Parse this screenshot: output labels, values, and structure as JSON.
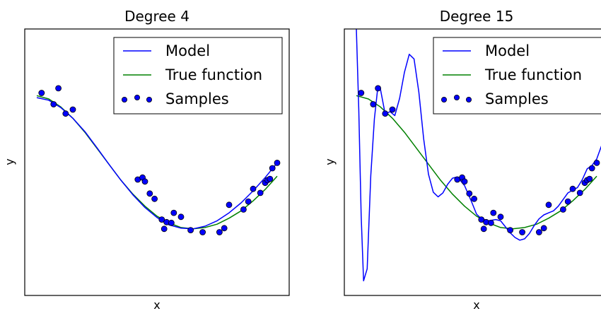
{
  "chart_data": [
    {
      "type": "line",
      "title": "Degree 4",
      "xlabel": "x",
      "ylabel": "y",
      "xlim": [
        -0.05,
        1.05
      ],
      "ylim": [
        -2,
        2
      ],
      "ticks_shown": false,
      "legend": {
        "placement": "top-right",
        "entries": [
          "Model",
          "True function",
          "Samples"
        ]
      },
      "colors": {
        "model": "#0000ff",
        "true_function": "#008000",
        "samples": "#0000ff"
      },
      "series": [
        {
          "name": "Model",
          "kind": "line",
          "x": [
            0.0,
            0.05,
            0.1,
            0.15,
            0.2,
            0.25,
            0.3,
            0.35,
            0.4,
            0.45,
            0.5,
            0.55,
            0.6,
            0.65,
            0.7,
            0.75,
            0.8,
            0.85,
            0.9,
            0.95,
            1.0
          ],
          "y": [
            0.97,
            0.93,
            0.82,
            0.66,
            0.46,
            0.22,
            -0.03,
            -0.27,
            -0.49,
            -0.68,
            -0.83,
            -0.94,
            -0.99,
            -1.0,
            -0.96,
            -0.88,
            -0.76,
            -0.61,
            -0.43,
            -0.23,
            -0.01
          ]
        },
        {
          "name": "True function",
          "kind": "line",
          "x": [
            0.0,
            0.05,
            0.1,
            0.15,
            0.2,
            0.25,
            0.3,
            0.35,
            0.4,
            0.45,
            0.5,
            0.55,
            0.6,
            0.65,
            0.7,
            0.75,
            0.8,
            0.85,
            0.9,
            0.95,
            1.0
          ],
          "y": [
            1.0,
            0.95,
            0.83,
            0.66,
            0.45,
            0.21,
            -0.03,
            -0.27,
            -0.48,
            -0.66,
            -0.81,
            -0.91,
            -0.98,
            -1.0,
            -0.98,
            -0.93,
            -0.84,
            -0.73,
            -0.58,
            -0.41,
            -0.21
          ]
        },
        {
          "name": "Samples",
          "kind": "scatter",
          "x": [
            0.02,
            0.07,
            0.09,
            0.12,
            0.15,
            0.42,
            0.44,
            0.45,
            0.47,
            0.49,
            0.52,
            0.53,
            0.54,
            0.56,
            0.57,
            0.6,
            0.64,
            0.69,
            0.76,
            0.78,
            0.8,
            0.86,
            0.88,
            0.9,
            0.93,
            0.95,
            0.96,
            0.97,
            0.98,
            1.0
          ],
          "y": [
            1.04,
            0.87,
            1.11,
            0.73,
            0.79,
            -0.26,
            -0.23,
            -0.29,
            -0.47,
            -0.55,
            -0.86,
            -1.0,
            -0.9,
            -0.91,
            -0.76,
            -0.82,
            -1.02,
            -1.05,
            -1.05,
            -0.99,
            -0.64,
            -0.71,
            -0.59,
            -0.4,
            -0.46,
            -0.31,
            -0.27,
            -0.25,
            -0.09,
            -0.01
          ]
        }
      ]
    },
    {
      "type": "line",
      "title": "Degree 15",
      "xlabel": "x",
      "ylabel": "y",
      "xlim": [
        -0.05,
        1.05
      ],
      "ylim": [
        -2,
        2
      ],
      "ticks_shown": false,
      "legend": {
        "placement": "top-right",
        "entries": [
          "Model",
          "True function",
          "Samples"
        ]
      },
      "colors": {
        "model": "#0000ff",
        "true_function": "#008000",
        "samples": "#0000ff"
      },
      "series": [
        {
          "name": "Model",
          "kind": "line",
          "x": [
            0.0,
            0.01,
            0.02,
            0.03,
            0.045,
            0.06,
            0.075,
            0.09,
            0.1,
            0.12,
            0.14,
            0.16,
            0.18,
            0.2,
            0.22,
            0.24,
            0.26,
            0.28,
            0.3,
            0.32,
            0.34,
            0.36,
            0.38,
            0.4,
            0.42,
            0.45,
            0.48,
            0.5,
            0.52,
            0.55,
            0.58,
            0.6,
            0.62,
            0.64,
            0.66,
            0.68,
            0.7,
            0.72,
            0.74,
            0.76,
            0.78,
            0.8,
            0.82,
            0.84,
            0.86,
            0.88,
            0.9,
            0.92,
            0.94,
            0.96,
            0.98,
            1.0,
            1.03
          ],
          "y": [
            2.0,
            0.8,
            -0.8,
            -1.78,
            -1.6,
            -0.2,
            0.65,
            1.15,
            1.1,
            0.72,
            0.76,
            0.7,
            0.96,
            1.35,
            1.62,
            1.55,
            1.05,
            0.35,
            -0.18,
            -0.45,
            -0.52,
            -0.46,
            -0.33,
            -0.24,
            -0.22,
            -0.35,
            -0.6,
            -0.78,
            -0.85,
            -0.88,
            -0.86,
            -0.88,
            -0.97,
            -1.06,
            -1.13,
            -1.17,
            -1.15,
            -1.07,
            -0.95,
            -0.85,
            -0.79,
            -0.76,
            -0.73,
            -0.66,
            -0.56,
            -0.46,
            -0.42,
            -0.38,
            -0.26,
            -0.1,
            -0.05,
            0.05,
            0.35
          ]
        },
        {
          "name": "True function",
          "kind": "line",
          "x": [
            0.0,
            0.05,
            0.1,
            0.15,
            0.2,
            0.25,
            0.3,
            0.35,
            0.4,
            0.45,
            0.5,
            0.55,
            0.6,
            0.65,
            0.7,
            0.75,
            0.8,
            0.85,
            0.9,
            0.95,
            1.0
          ],
          "y": [
            1.0,
            0.95,
            0.83,
            0.66,
            0.45,
            0.21,
            -0.03,
            -0.27,
            -0.48,
            -0.66,
            -0.81,
            -0.91,
            -0.98,
            -1.0,
            -0.98,
            -0.93,
            -0.84,
            -0.73,
            -0.58,
            -0.41,
            -0.21
          ]
        },
        {
          "name": "Samples",
          "kind": "scatter",
          "x": [
            0.02,
            0.07,
            0.09,
            0.12,
            0.15,
            0.42,
            0.44,
            0.45,
            0.47,
            0.49,
            0.52,
            0.53,
            0.54,
            0.56,
            0.57,
            0.6,
            0.64,
            0.69,
            0.76,
            0.78,
            0.8,
            0.86,
            0.88,
            0.9,
            0.93,
            0.95,
            0.96,
            0.97,
            0.98,
            1.0
          ],
          "y": [
            1.04,
            0.87,
            1.11,
            0.73,
            0.79,
            -0.26,
            -0.23,
            -0.29,
            -0.47,
            -0.55,
            -0.86,
            -1.0,
            -0.9,
            -0.91,
            -0.76,
            -0.82,
            -1.02,
            -1.05,
            -1.05,
            -0.99,
            -0.64,
            -0.71,
            -0.59,
            -0.4,
            -0.46,
            -0.31,
            -0.27,
            -0.25,
            -0.09,
            -0.01
          ]
        }
      ]
    }
  ]
}
